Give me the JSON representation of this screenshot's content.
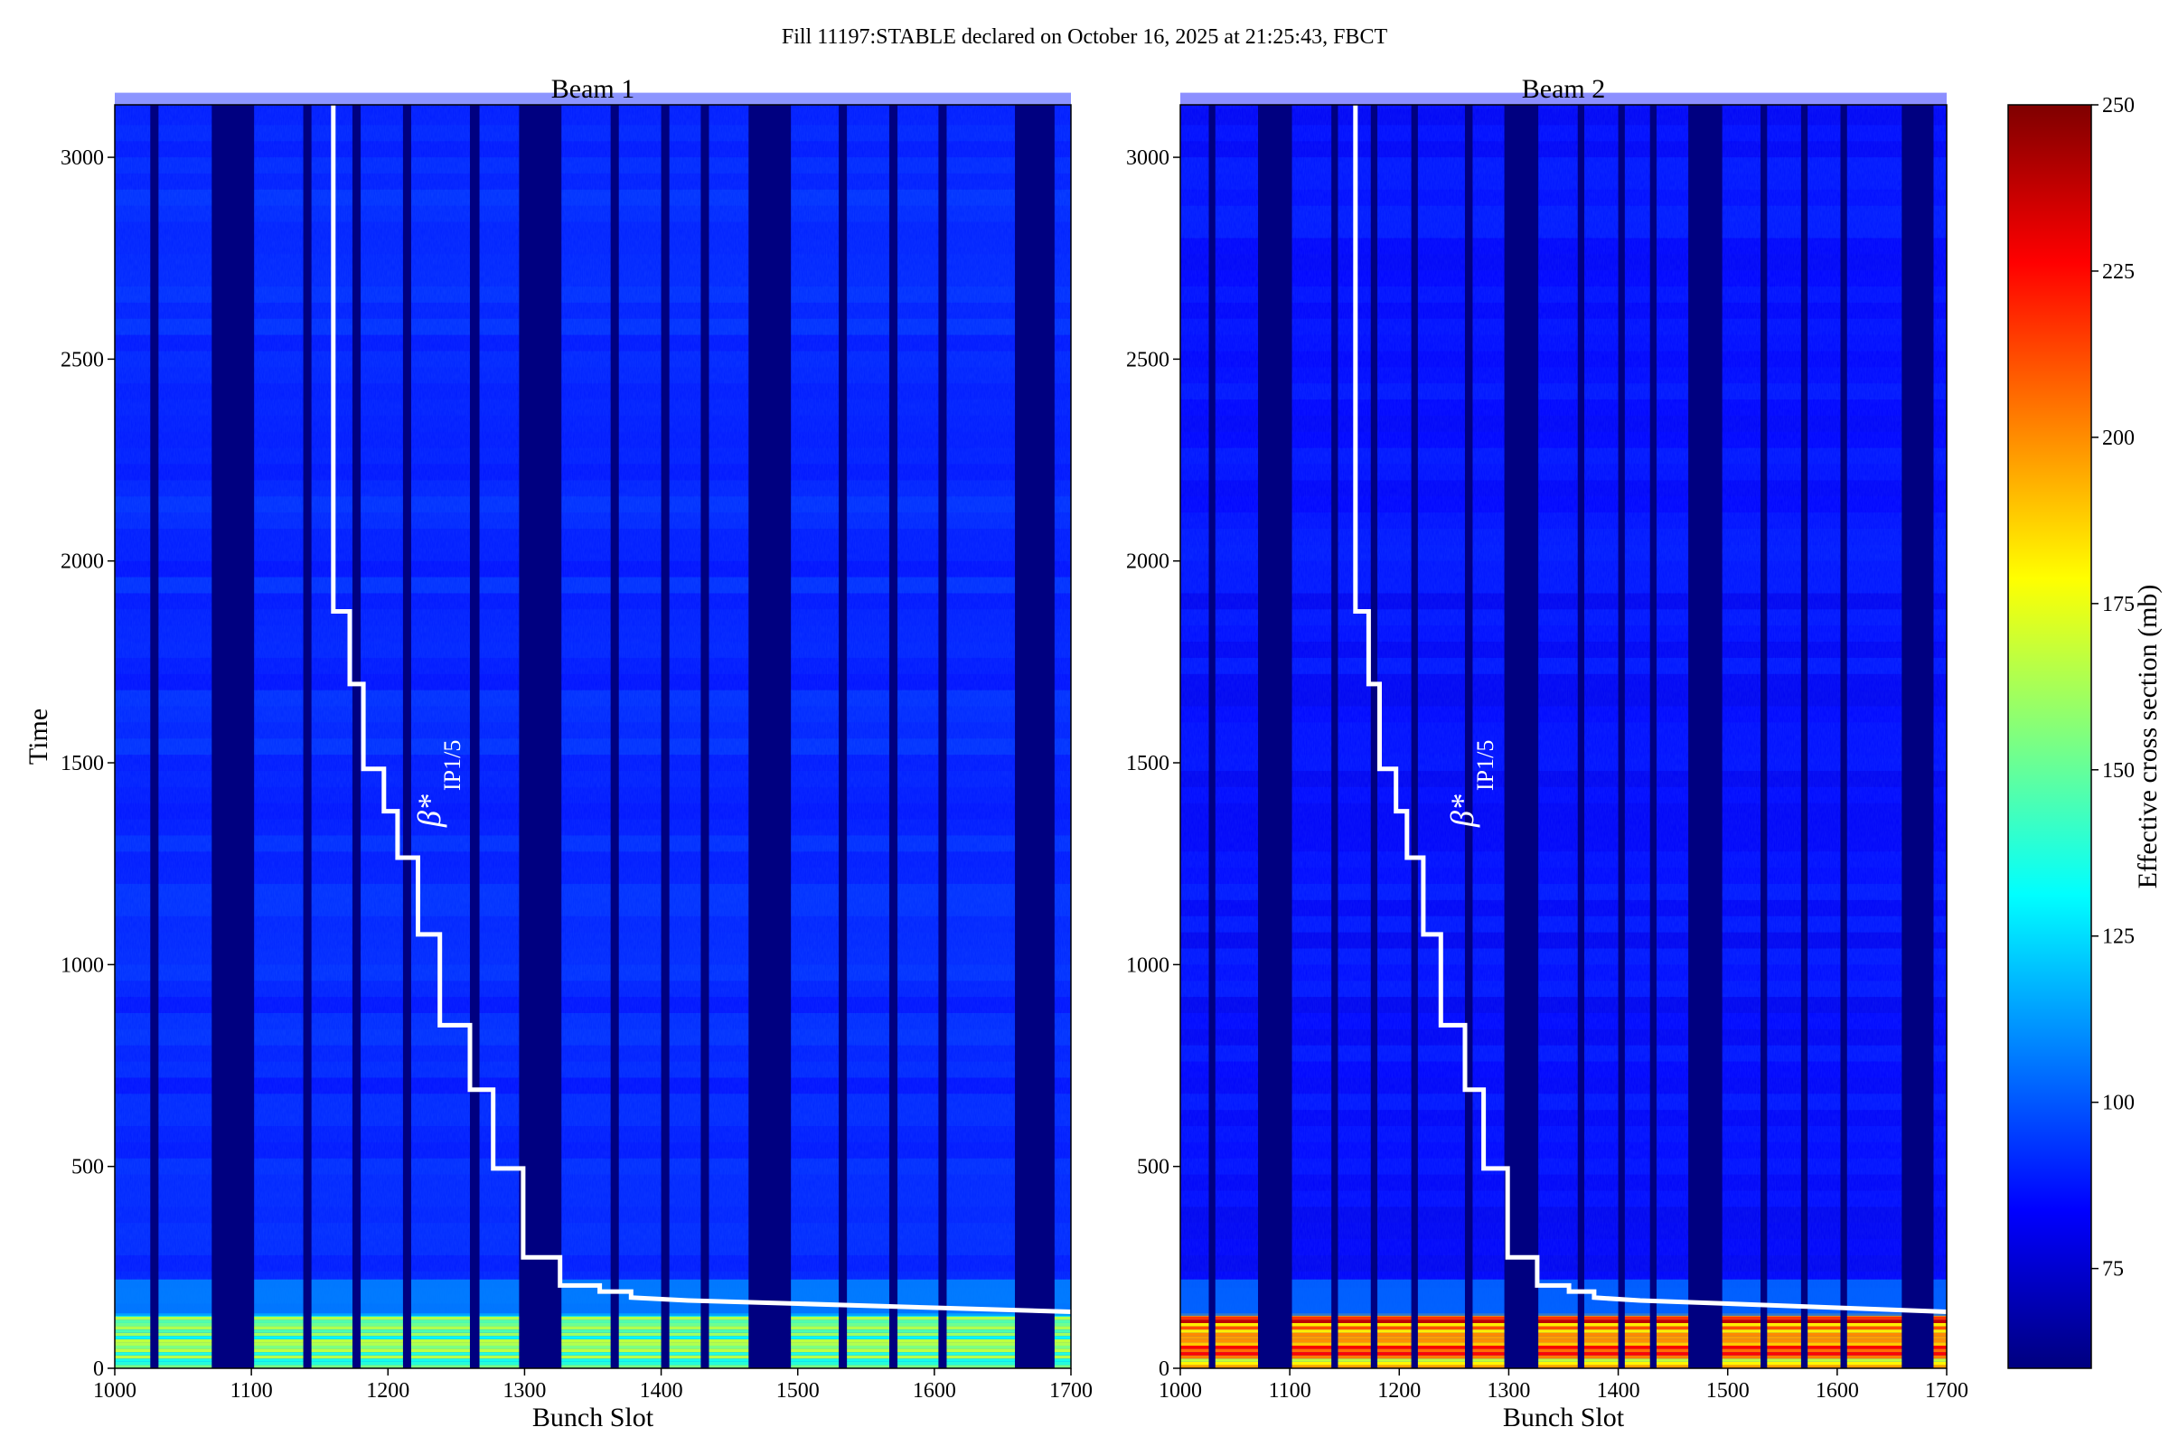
{
  "title": "Fill 11197:STABLE declared on October 16, 2025 at 21:25:43, FBCT",
  "colors": {
    "background": "#000080",
    "trace": "#ffffff",
    "colormap": [
      "#00007f",
      "#0000ff",
      "#007fff",
      "#00ffff",
      "#7fff7f",
      "#ffff00",
      "#ff7f00",
      "#ff0000",
      "#7f0000"
    ]
  },
  "colorbar": {
    "label": "Effective cross section (mb)",
    "min": 60,
    "max": 250,
    "ticks": [
      75,
      100,
      125,
      150,
      175,
      200,
      225,
      250
    ]
  },
  "annotation_label": "β*",
  "annotation_sub": "IP1/5",
  "chart_data": [
    {
      "type": "heatmap",
      "title": "Beam 1",
      "xlabel": "Bunch Slot",
      "ylabel": "Time",
      "xlim": [
        1000,
        1700
      ],
      "ylim": [
        0,
        3130
      ],
      "xticks": [
        1000,
        1100,
        1200,
        1300,
        1400,
        1500,
        1600,
        1700
      ],
      "yticks": [
        0,
        500,
        1000,
        1500,
        2000,
        2500,
        3000
      ],
      "empty_slot_ranges": [
        [
          1026,
          1032
        ],
        [
          1071,
          1102
        ],
        [
          1138,
          1144
        ],
        [
          1174,
          1180
        ],
        [
          1211,
          1217
        ],
        [
          1260,
          1267
        ],
        [
          1296,
          1327
        ],
        [
          1363,
          1369
        ],
        [
          1400,
          1406
        ],
        [
          1429,
          1435
        ],
        [
          1464,
          1495
        ],
        [
          1530,
          1536
        ],
        [
          1567,
          1573
        ],
        [
          1603,
          1609
        ],
        [
          1659,
          1688
        ]
      ],
      "typical_cross_section_mb": 90,
      "high_cross_section_mb_early": 170,
      "beta_star_trace": [
        [
          1160,
          3130
        ],
        [
          1160,
          1875
        ],
        [
          1172,
          1875
        ],
        [
          1172,
          1695
        ],
        [
          1182,
          1695
        ],
        [
          1182,
          1485
        ],
        [
          1197,
          1485
        ],
        [
          1197,
          1380
        ],
        [
          1207,
          1380
        ],
        [
          1207,
          1265
        ],
        [
          1222,
          1265
        ],
        [
          1222,
          1075
        ],
        [
          1238,
          1075
        ],
        [
          1238,
          850
        ],
        [
          1260,
          850
        ],
        [
          1260,
          690
        ],
        [
          1277,
          690
        ],
        [
          1277,
          495
        ],
        [
          1299,
          495
        ],
        [
          1299,
          275
        ],
        [
          1326,
          275
        ],
        [
          1326,
          205
        ],
        [
          1355,
          205
        ],
        [
          1355,
          190
        ],
        [
          1378,
          190
        ],
        [
          1378,
          175
        ],
        [
          1420,
          168
        ],
        [
          1500,
          160
        ],
        [
          1600,
          150
        ],
        [
          1700,
          140
        ]
      ]
    },
    {
      "type": "heatmap",
      "title": "Beam 2",
      "xlabel": "Bunch Slot",
      "ylabel": "",
      "xlim": [
        1000,
        1700
      ],
      "ylim": [
        0,
        3130
      ],
      "xticks": [
        1000,
        1100,
        1200,
        1300,
        1400,
        1500,
        1600,
        1700
      ],
      "yticks": [
        0,
        500,
        1000,
        1500,
        2000,
        2500,
        3000
      ],
      "empty_slot_ranges": [
        [
          1026,
          1032
        ],
        [
          1071,
          1102
        ],
        [
          1138,
          1144
        ],
        [
          1174,
          1180
        ],
        [
          1211,
          1217
        ],
        [
          1260,
          1267
        ],
        [
          1296,
          1327
        ],
        [
          1363,
          1369
        ],
        [
          1400,
          1406
        ],
        [
          1429,
          1435
        ],
        [
          1464,
          1495
        ],
        [
          1530,
          1536
        ],
        [
          1567,
          1573
        ],
        [
          1603,
          1609
        ],
        [
          1659,
          1688
        ]
      ],
      "typical_cross_section_mb": 85,
      "high_cross_section_mb_early": 240,
      "beta_star_trace": [
        [
          1160,
          3130
        ],
        [
          1160,
          1875
        ],
        [
          1172,
          1875
        ],
        [
          1172,
          1695
        ],
        [
          1182,
          1695
        ],
        [
          1182,
          1485
        ],
        [
          1197,
          1485
        ],
        [
          1197,
          1380
        ],
        [
          1207,
          1380
        ],
        [
          1207,
          1265
        ],
        [
          1222,
          1265
        ],
        [
          1222,
          1075
        ],
        [
          1238,
          1075
        ],
        [
          1238,
          850
        ],
        [
          1260,
          850
        ],
        [
          1260,
          690
        ],
        [
          1277,
          690
        ],
        [
          1277,
          495
        ],
        [
          1299,
          495
        ],
        [
          1299,
          275
        ],
        [
          1326,
          275
        ],
        [
          1326,
          205
        ],
        [
          1355,
          205
        ],
        [
          1355,
          190
        ],
        [
          1378,
          190
        ],
        [
          1378,
          175
        ],
        [
          1420,
          168
        ],
        [
          1500,
          160
        ],
        [
          1600,
          150
        ],
        [
          1700,
          140
        ]
      ]
    }
  ]
}
